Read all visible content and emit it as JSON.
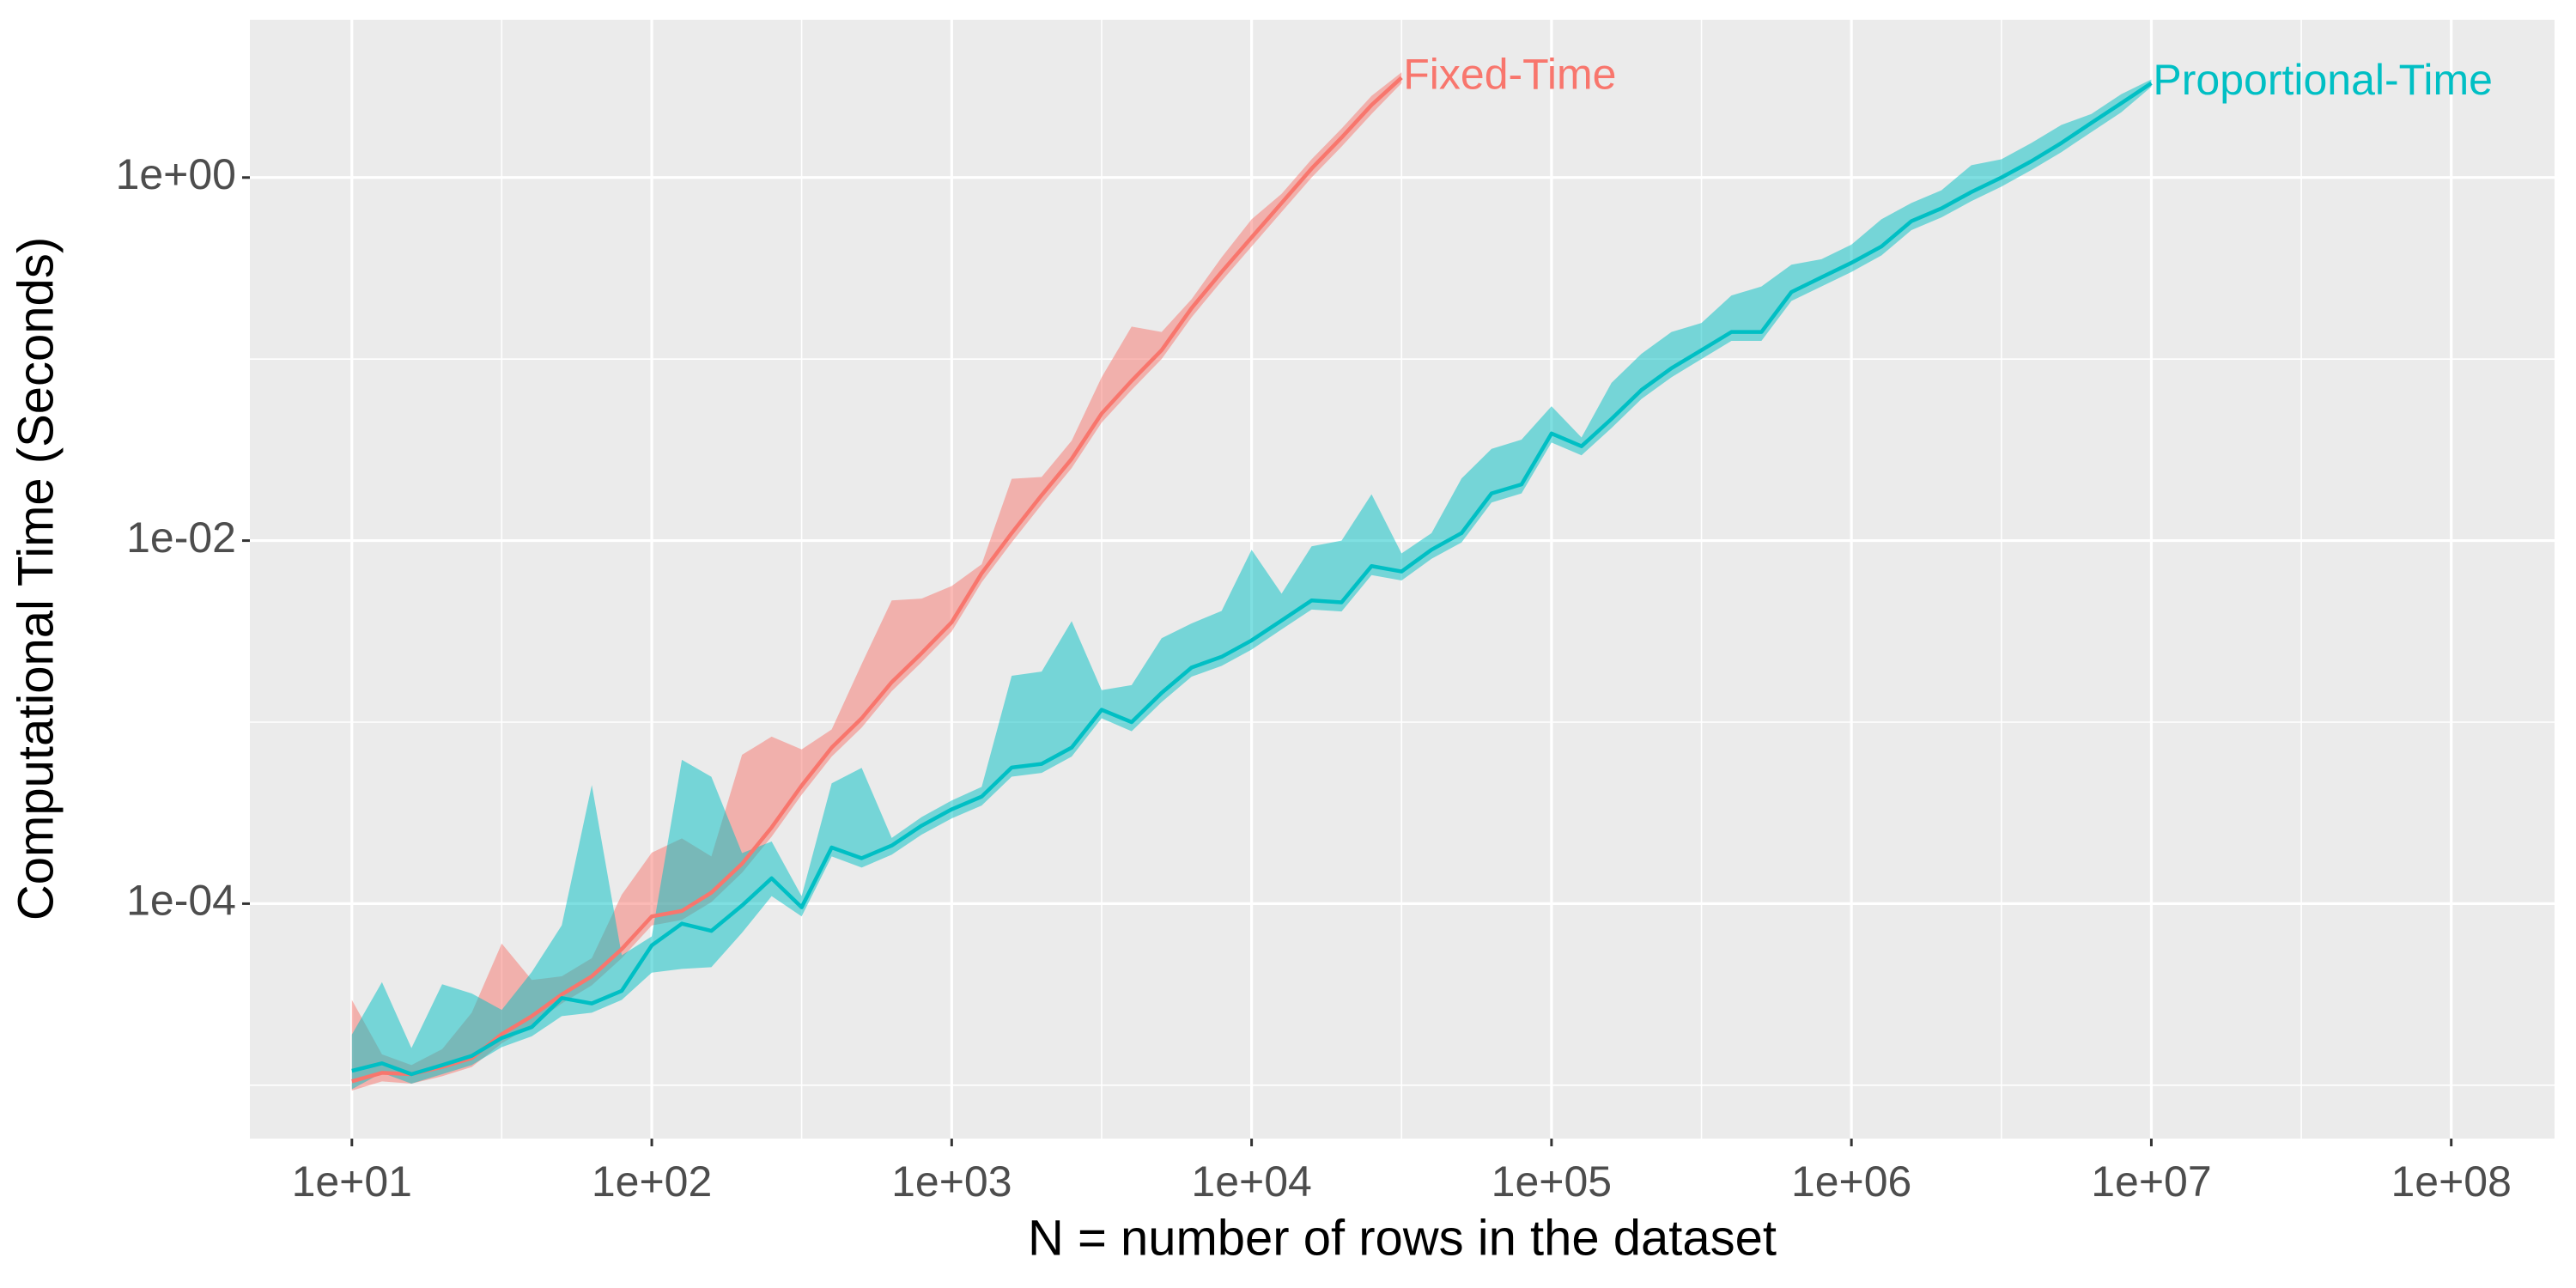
{
  "chart_data": {
    "type": "line",
    "x_label": "N = number of rows in the dataset",
    "y_label": "Computational Time (Seconds)",
    "xlog": true,
    "ylog": true,
    "grid": true,
    "legend": "none",
    "xlim": [
      4.57,
      221000000
    ],
    "ylim": [
      5.08e-06,
      7.4
    ],
    "xticks": [
      {
        "value": 10,
        "label": "1e+01"
      },
      {
        "value": 100,
        "label": "1e+02"
      },
      {
        "value": 1000,
        "label": "1e+03"
      },
      {
        "value": 10000,
        "label": "1e+04"
      },
      {
        "value": 100000,
        "label": "1e+05"
      },
      {
        "value": 1000000,
        "label": "1e+06"
      },
      {
        "value": 10000000,
        "label": "1e+07"
      },
      {
        "value": 100000000,
        "label": "1e+08"
      }
    ],
    "yticks": [
      {
        "value": 0.0001,
        "label": "1e-04"
      },
      {
        "value": 0.01,
        "label": "1e-02"
      },
      {
        "value": 1,
        "label": "1e+00"
      }
    ],
    "xminor": [
      31.6,
      316,
      3162,
      31623,
      316228,
      3162278,
      31622777
    ],
    "yminor": [
      1e-05,
      0.001,
      0.1
    ],
    "series": [
      {
        "name": "Fixed-Time",
        "color": "#F8766D",
        "x": [
          10,
          12.6,
          15.8,
          20,
          25.1,
          31.6,
          39.8,
          50.1,
          63.1,
          79.4,
          100,
          126,
          158,
          200,
          251,
          316,
          398,
          501,
          631,
          794,
          1000,
          1259,
          1585,
          1995,
          2512,
          3162,
          3981,
          5012,
          6310,
          7943,
          10000,
          12589,
          15849,
          19953,
          25119,
          31623
        ],
        "values": [
          1.05e-05,
          1.17e-05,
          1.15e-05,
          1.26e-05,
          1.41e-05,
          1.91e-05,
          2.4e-05,
          3.16e-05,
          3.98e-05,
          5.62e-05,
          8.51e-05,
          9.12e-05,
          0.000115,
          0.000166,
          0.000263,
          0.000447,
          0.000724,
          0.00105,
          0.00166,
          0.0024,
          0.00355,
          0.00661,
          0.011,
          0.0178,
          0.0282,
          0.0501,
          0.0759,
          0.112,
          0.191,
          0.302,
          0.468,
          0.724,
          1.12,
          1.66,
          2.51,
          3.55
        ],
        "upper": [
          2.95e-05,
          1.48e-05,
          1.29e-05,
          1.58e-05,
          2.51e-05,
          6.03e-05,
          3.8e-05,
          3.98e-05,
          5.01e-05,
          0.000112,
          0.000191,
          0.000229,
          0.000182,
          0.000661,
          0.000832,
          0.000708,
          0.000912,
          0.00209,
          0.00468,
          0.00479,
          0.00562,
          0.00741,
          0.0219,
          0.0224,
          0.0355,
          0.0794,
          0.151,
          0.141,
          0.214,
          0.363,
          0.589,
          0.813,
          1.26,
          1.86,
          2.82,
          3.8
        ],
        "lower": [
          9.33e-06,
          1.05e-05,
          1.02e-05,
          1.12e-05,
          1.26e-05,
          1.7e-05,
          2.14e-05,
          2.82e-05,
          3.55e-05,
          5.01e-05,
          7.59e-05,
          8.13e-05,
          0.000102,
          0.000148,
          0.000234,
          0.000398,
          0.000646,
          0.000933,
          0.00148,
          0.00214,
          0.00316,
          0.00589,
          0.00977,
          0.0158,
          0.0251,
          0.0447,
          0.0676,
          0.1,
          0.17,
          0.269,
          0.417,
          0.646,
          1.0,
          1.48,
          2.24,
          3.31
        ]
      },
      {
        "name": "Proportional-Time",
        "color": "#00BFC4",
        "x": [
          10,
          12.6,
          15.8,
          20,
          25.1,
          31.6,
          39.8,
          50.1,
          63.1,
          79.4,
          100,
          126,
          158,
          200,
          251,
          316,
          398,
          501,
          631,
          794,
          1000,
          1259,
          1585,
          1995,
          2512,
          3162,
          3981,
          5012,
          6310,
          7943,
          10000,
          12589,
          15849,
          19953,
          25119,
          31623,
          39811,
          50119,
          63096,
          79433,
          100000,
          125893,
          158489,
          199526,
          251189,
          316228,
          398107,
          501187,
          630957,
          794328,
          1000000,
          1258925,
          1584893,
          1995262,
          2511886,
          3162278,
          3981072,
          5011872,
          6309573,
          7943282,
          10000000
        ],
        "values": [
          1.2e-05,
          1.32e-05,
          1.15e-05,
          1.29e-05,
          1.45e-05,
          1.82e-05,
          2.09e-05,
          3.02e-05,
          2.82e-05,
          3.31e-05,
          5.89e-05,
          7.76e-05,
          7.08e-05,
          9.77e-05,
          0.000138,
          9.55e-05,
          0.000204,
          0.000178,
          0.000209,
          0.000269,
          0.000331,
          0.000389,
          0.000562,
          0.000589,
          0.000724,
          0.00117,
          0.001,
          0.00145,
          0.002,
          0.00229,
          0.00282,
          0.00363,
          0.00468,
          0.00457,
          0.00724,
          0.00676,
          0.00891,
          0.011,
          0.0182,
          0.0204,
          0.0389,
          0.0331,
          0.0468,
          0.0676,
          0.0891,
          0.112,
          0.141,
          0.141,
          0.234,
          0.282,
          0.339,
          0.417,
          0.575,
          0.676,
          0.832,
          1.0,
          1.23,
          1.55,
          2.0,
          2.57,
          3.31
        ],
        "upper": [
          1.9e-05,
          3.7e-05,
          1.6e-05,
          3.6e-05,
          3.2e-05,
          2.6e-05,
          4.2e-05,
          7.6e-05,
          0.00045,
          5.2e-05,
          6.6e-05,
          0.00062,
          0.0005,
          0.00019,
          0.00022,
          0.00011,
          0.00046,
          0.00056,
          0.00023,
          0.0003,
          0.00037,
          0.00044,
          0.0018,
          0.0019,
          0.0036,
          0.0015,
          0.0016,
          0.0029,
          0.0035,
          0.0041,
          0.0089,
          0.0051,
          0.0093,
          0.01,
          0.018,
          0.0085,
          0.011,
          0.022,
          0.032,
          0.036,
          0.055,
          0.037,
          0.074,
          0.107,
          0.141,
          0.158,
          0.224,
          0.251,
          0.331,
          0.355,
          0.427,
          0.589,
          0.724,
          0.851,
          1.17,
          1.26,
          1.55,
          1.95,
          2.24,
          2.88,
          3.47
        ],
        "lower": [
          9.5e-06,
          1.17e-05,
          1.02e-05,
          1.15e-05,
          1.29e-05,
          1.62e-05,
          1.86e-05,
          2.4e-05,
          2.51e-05,
          2.95e-05,
          4.17e-05,
          4.37e-05,
          4.47e-05,
          6.92e-05,
          0.00011,
          8.51e-05,
          0.000182,
          0.000158,
          0.000186,
          0.00024,
          0.000295,
          0.000347,
          0.000501,
          0.000525,
          0.000646,
          0.00105,
          0.000891,
          0.00129,
          0.00178,
          0.00204,
          0.00251,
          0.00324,
          0.00417,
          0.00407,
          0.00646,
          0.00603,
          0.00794,
          0.00977,
          0.0162,
          0.0182,
          0.0347,
          0.0295,
          0.0417,
          0.0603,
          0.0794,
          0.1,
          0.126,
          0.126,
          0.209,
          0.251,
          0.302,
          0.372,
          0.513,
          0.603,
          0.741,
          0.891,
          1.1,
          1.38,
          1.78,
          2.29,
          3.16
        ]
      }
    ]
  }
}
